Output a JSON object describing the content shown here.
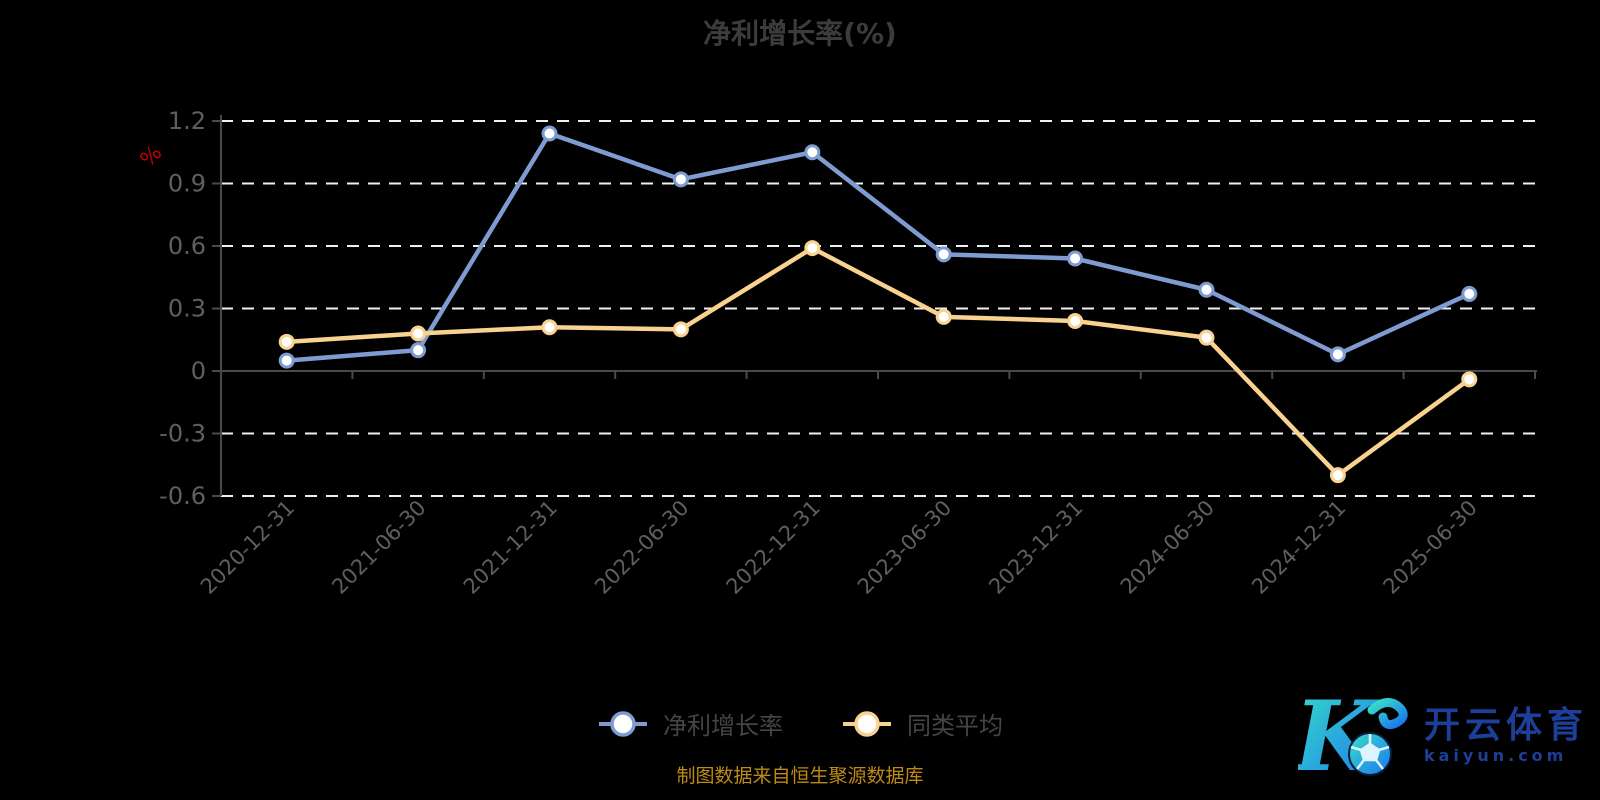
{
  "title": "净利增长率(%)",
  "y_axis_name": "%",
  "footer": {
    "source_note": "制图数据来自恒生聚源数据库"
  },
  "logo": {
    "brand": "开云体育",
    "domain": "kaiyun.com"
  },
  "colors": {
    "background": "#000000",
    "title": "#3c3c3c",
    "axis_label": "#5f5f5f",
    "axis_line": "#4a4a4a",
    "gridline": "#f0f0f0",
    "legend_text": "#454545",
    "footer_text": "#bd8a15",
    "unit_label": "#c00000",
    "logo_text": "#1c3f9a",
    "logo_gradient_start": "#38e1c6",
    "logo_gradient_end": "#1b74f0"
  },
  "chart_data": {
    "type": "line",
    "title": "净利增长率(%)",
    "ylabel": "%",
    "categories": [
      "2020-12-31",
      "2021-06-30",
      "2021-12-31",
      "2022-06-30",
      "2022-12-31",
      "2023-06-30",
      "2023-12-31",
      "2024-06-30",
      "2024-12-31",
      "2025-06-30"
    ],
    "series": [
      {
        "name": "净利增长率",
        "color": "#7e9cd2",
        "marker_fill": "#ffffff",
        "values": [
          0.05,
          0.1,
          1.14,
          0.92,
          1.05,
          0.56,
          0.54,
          0.39,
          0.08,
          0.37
        ]
      },
      {
        "name": "同类平均",
        "color": "#f8d28e",
        "marker_fill": "#ffffff",
        "values": [
          0.14,
          0.18,
          0.21,
          0.2,
          0.59,
          0.26,
          0.24,
          0.16,
          -0.5,
          -0.04
        ]
      }
    ],
    "ylim": [
      -0.6,
      1.2
    ],
    "ytick_step": 0.3,
    "x_label_rotate": 45,
    "grid": "dashed-horizontal",
    "legend_position": "bottom"
  }
}
